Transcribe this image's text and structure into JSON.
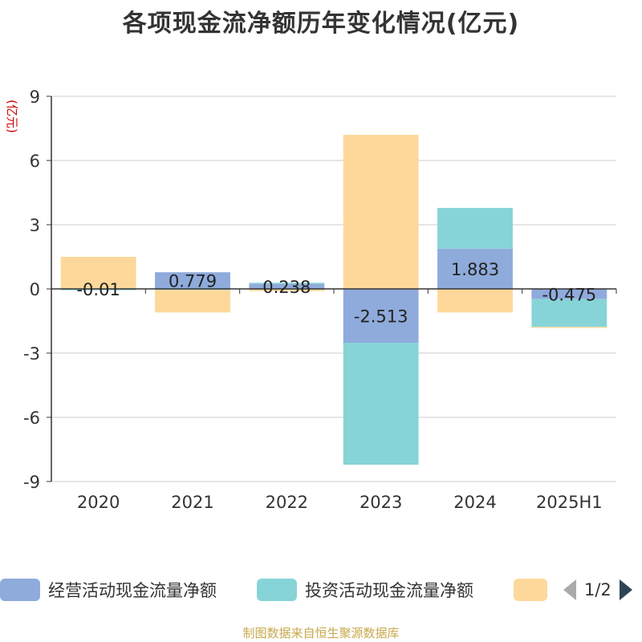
{
  "title": "各项现金流净额历年变化情况(亿元)",
  "footer": "制图数据来自恒生聚源数据库",
  "legend": {
    "items": [
      "经营活动现金流量净额",
      "投资活动现金流量净额",
      ""
    ],
    "page_indicator": "1/2"
  },
  "chart_data": {
    "type": "bar",
    "stacked": true,
    "title": "各项现金流净额历年变化情况(亿元)",
    "ylabel": "(亿元)",
    "xlabel": "",
    "ylim": [
      -9,
      9
    ],
    "yticks": [
      9,
      6,
      3,
      0,
      -3,
      -6,
      -9
    ],
    "grid": true,
    "legend_position": "bottom",
    "categories": [
      "2020",
      "2021",
      "2022",
      "2023",
      "2024",
      "2025H1"
    ],
    "series": [
      {
        "name": "经营活动现金流量净额",
        "color": "#8fabdb",
        "values": [
          -0.01,
          0.779,
          0.238,
          -2.513,
          1.883,
          -0.475
        ],
        "labels": [
          "-0.01",
          "0.779",
          "0.238",
          "-2.513",
          "1.883",
          "-0.475"
        ]
      },
      {
        "name": "投资活动现金流量净额",
        "color": "#86d4d8",
        "values": [
          -0.05,
          -0.05,
          0.05,
          -5.7,
          1.9,
          -1.3
        ]
      },
      {
        "name": "",
        "color": "#fdd89a",
        "values": [
          1.5,
          -1.05,
          -0.1,
          7.2,
          -1.1,
          -0.05
        ]
      }
    ]
  }
}
